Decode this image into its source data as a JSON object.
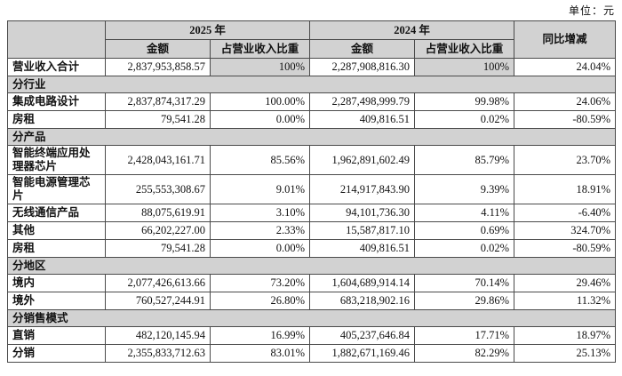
{
  "unit_label": "单位：元",
  "table": {
    "col_headers": {
      "year_2025": "2025 年",
      "year_2024": "2024 年",
      "amount": "金额",
      "ratio": "占营业收入比重",
      "yoy": "同比增减"
    },
    "colors": {
      "header_bg": "#d2d2d2",
      "section_bg": "#d2d2d2",
      "total_ratio_bg": "#d2d2d2",
      "border": "#4a4a4a"
    },
    "rows": [
      {
        "type": "data",
        "label": "营业收入合计",
        "highlight_ratio": true,
        "amount_2025": "2,837,953,858.57",
        "ratio_2025": "100%",
        "amount_2024": "2,287,908,816.30",
        "ratio_2024": "100%",
        "yoy": "24.04%"
      },
      {
        "type": "section",
        "label": "分行业"
      },
      {
        "type": "data",
        "label": "集成电路设计",
        "amount_2025": "2,837,874,317.29",
        "ratio_2025": "100.00%",
        "amount_2024": "2,287,498,999.79",
        "ratio_2024": "99.98%",
        "yoy": "24.06%"
      },
      {
        "type": "data",
        "label": "房租",
        "amount_2025": "79,541.28",
        "ratio_2025": "0.00%",
        "amount_2024": "409,816.51",
        "ratio_2024": "0.02%",
        "yoy": "-80.59%"
      },
      {
        "type": "section",
        "label": "分产品"
      },
      {
        "type": "data",
        "label": "智能终端应用处理器芯片",
        "amount_2025": "2,428,043,161.71",
        "ratio_2025": "85.56%",
        "amount_2024": "1,962,891,602.49",
        "ratio_2024": "85.79%",
        "yoy": "23.70%"
      },
      {
        "type": "data",
        "label": "智能电源管理芯片",
        "amount_2025": "255,553,308.67",
        "ratio_2025": "9.01%",
        "amount_2024": "214,917,843.90",
        "ratio_2024": "9.39%",
        "yoy": "18.91%"
      },
      {
        "type": "data",
        "label": "无线通信产品",
        "amount_2025": "88,075,619.91",
        "ratio_2025": "3.10%",
        "amount_2024": "94,101,736.30",
        "ratio_2024": "4.11%",
        "yoy": "-6.40%"
      },
      {
        "type": "data",
        "label": "其他",
        "amount_2025": "66,202,227.00",
        "ratio_2025": "2.33%",
        "amount_2024": "15,587,817.10",
        "ratio_2024": "0.69%",
        "yoy": "324.70%"
      },
      {
        "type": "data",
        "label": "房租",
        "amount_2025": "79,541.28",
        "ratio_2025": "0.00%",
        "amount_2024": "409,816.51",
        "ratio_2024": "0.02%",
        "yoy": "-80.59%"
      },
      {
        "type": "section",
        "label": "分地区"
      },
      {
        "type": "data",
        "label": "境内",
        "amount_2025": "2,077,426,613.66",
        "ratio_2025": "73.20%",
        "amount_2024": "1,604,689,914.14",
        "ratio_2024": "70.14%",
        "yoy": "29.46%"
      },
      {
        "type": "data",
        "label": "境外",
        "amount_2025": "760,527,244.91",
        "ratio_2025": "26.80%",
        "amount_2024": "683,218,902.16",
        "ratio_2024": "29.86%",
        "yoy": "11.32%"
      },
      {
        "type": "section",
        "label": "分销售模式"
      },
      {
        "type": "data",
        "label": "直销",
        "amount_2025": "482,120,145.94",
        "ratio_2025": "16.99%",
        "amount_2024": "405,237,646.84",
        "ratio_2024": "17.71%",
        "yoy": "18.97%"
      },
      {
        "type": "data",
        "label": "分销",
        "amount_2025": "2,355,833,712.63",
        "ratio_2025": "83.01%",
        "amount_2024": "1,882,671,169.46",
        "ratio_2024": "82.29%",
        "yoy": "25.13%"
      }
    ]
  }
}
